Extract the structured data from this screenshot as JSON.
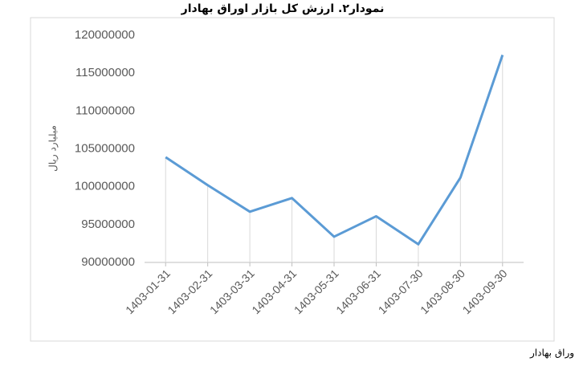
{
  "chart_data": {
    "type": "line",
    "title": "نمودار۲. ارزش کل بازار اوراق بهادار",
    "y_label": "میلیارد ریال",
    "source": "مأخذ: گزارش وضعیت بازار سرمایه، مدیریت پژوهش،توسعه و مطالعات اسلامی سازمان بورس و اوراق بهادار",
    "categories": [
      "1403-01-31",
      "1403-02-31",
      "1403-03-31",
      "1403-04-31",
      "1403-05-31",
      "1403-06-31",
      "1403-07-30",
      "1403-08-30",
      "1403-09-30"
    ],
    "values": [
      103900000,
      100200000,
      96700000,
      98500000,
      93400000,
      96100000,
      92400000,
      101200000,
      117400000
    ],
    "color": "#5b9bd5",
    "ylim": [
      90000000,
      120000000
    ],
    "yticks": [
      90000000,
      95000000,
      100000000,
      105000000,
      110000000,
      115000000,
      120000000
    ],
    "drop_lines": true
  }
}
